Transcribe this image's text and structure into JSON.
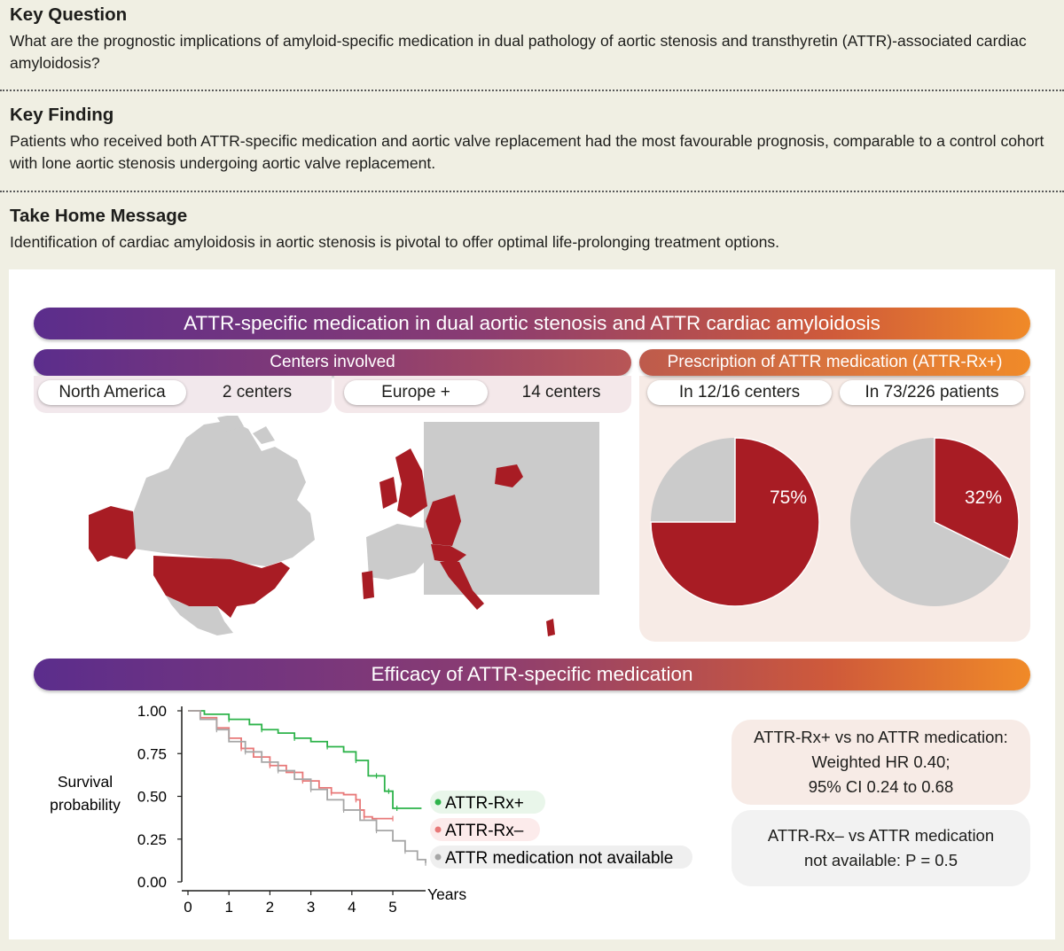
{
  "key_question": {
    "heading": "Key Question",
    "text": "What are the prognostic implications of amyloid-specific medication in dual pathology of aortic stenosis and transthyretin (ATTR)-associated cardiac amyloidosis?"
  },
  "key_finding": {
    "heading": "Key Finding",
    "text": "Patients who received both ATTR-specific medication and aortic valve replacement had the most favourable prognosis, comparable to a control cohort with lone aortic stenosis undergoing aortic valve replacement."
  },
  "take_home": {
    "heading": "Take Home Message",
    "text": "Identification of cardiac amyloidosis in aortic stenosis is pivotal to offer optimal life-prolonging treatment options."
  },
  "main_title": "ATTR-specific medication in dual aortic stenosis and ATTR cardiac amyloidosis",
  "centers": {
    "title": "Centers involved",
    "north_america": {
      "region": "North America",
      "count": "2 centers"
    },
    "europe": {
      "region": "Europe +",
      "count": "14 centers"
    }
  },
  "prescription": {
    "title": "Prescription of ATTR medication (ATTR-Rx+)",
    "centers_label": "In 12/16 centers",
    "patients_label": "In 73/226 patients",
    "centers_pct_label": "75%",
    "patients_pct_label": "32%",
    "centers_fraction": 0.75,
    "patients_fraction": 0.323
  },
  "efficacy_title": "Efficacy of ATTR-specific medication",
  "colors": {
    "red": "#a81c24",
    "grey": "#cbcbcb",
    "green": "#2db34a",
    "salmon": "#e87878",
    "km_grey": "#a6a6a6",
    "purple": "#5b2d8c",
    "orange": "#f08a28"
  },
  "chart_data": {
    "type": "line",
    "title": "",
    "ylabel": "Survival probability",
    "xlabel": "Years",
    "xlim": [
      0,
      5.8
    ],
    "ylim": [
      0,
      1
    ],
    "x_ticks": [
      "0",
      "1",
      "2",
      "3",
      "4",
      "5"
    ],
    "y_ticks": [
      "0.00",
      "0.25",
      "0.50",
      "0.75",
      "1.00"
    ],
    "series": [
      {
        "name": "ATTR-Rx+",
        "color": "#2db34a",
        "x": [
          0,
          0.4,
          1.0,
          1.5,
          1.8,
          2.2,
          2.6,
          3.0,
          3.4,
          3.8,
          4.1,
          4.4,
          4.6,
          4.8,
          4.9,
          5.0,
          5.1,
          5.7
        ],
        "y": [
          1.0,
          0.98,
          0.95,
          0.92,
          0.89,
          0.87,
          0.84,
          0.82,
          0.79,
          0.76,
          0.71,
          0.62,
          0.62,
          0.53,
          0.53,
          0.43,
          0.43,
          0.43
        ]
      },
      {
        "name": "ATTR-Rx–",
        "color": "#e87878",
        "x": [
          0,
          0.3,
          0.7,
          1.0,
          1.3,
          1.6,
          2.0,
          2.4,
          2.8,
          3.2,
          3.5,
          3.8,
          4.1,
          4.2,
          4.3,
          4.5,
          5.0
        ],
        "y": [
          1.0,
          0.96,
          0.9,
          0.84,
          0.78,
          0.73,
          0.68,
          0.64,
          0.59,
          0.55,
          0.52,
          0.51,
          0.48,
          0.42,
          0.38,
          0.37,
          0.37
        ]
      },
      {
        "name": "ATTR medication not available",
        "color": "#a6a6a6",
        "x": [
          0,
          0.3,
          0.7,
          1.0,
          1.4,
          1.8,
          2.2,
          2.6,
          3.0,
          3.4,
          3.8,
          4.2,
          4.6,
          5.0,
          5.3,
          5.6,
          5.8
        ],
        "y": [
          1.0,
          0.95,
          0.89,
          0.82,
          0.76,
          0.7,
          0.65,
          0.6,
          0.54,
          0.48,
          0.42,
          0.36,
          0.3,
          0.24,
          0.18,
          0.13,
          0.11
        ]
      }
    ]
  },
  "stats": {
    "box1_line1": "ATTR-Rx+ vs no ATTR medication:",
    "box1_line2": "Weighted HR 0.40;",
    "box1_line3": "95% CI 0.24 to 0.68",
    "box2_line1": "ATTR-Rx– vs ATTR medication",
    "box2_line2": "not available: P = 0.5"
  }
}
